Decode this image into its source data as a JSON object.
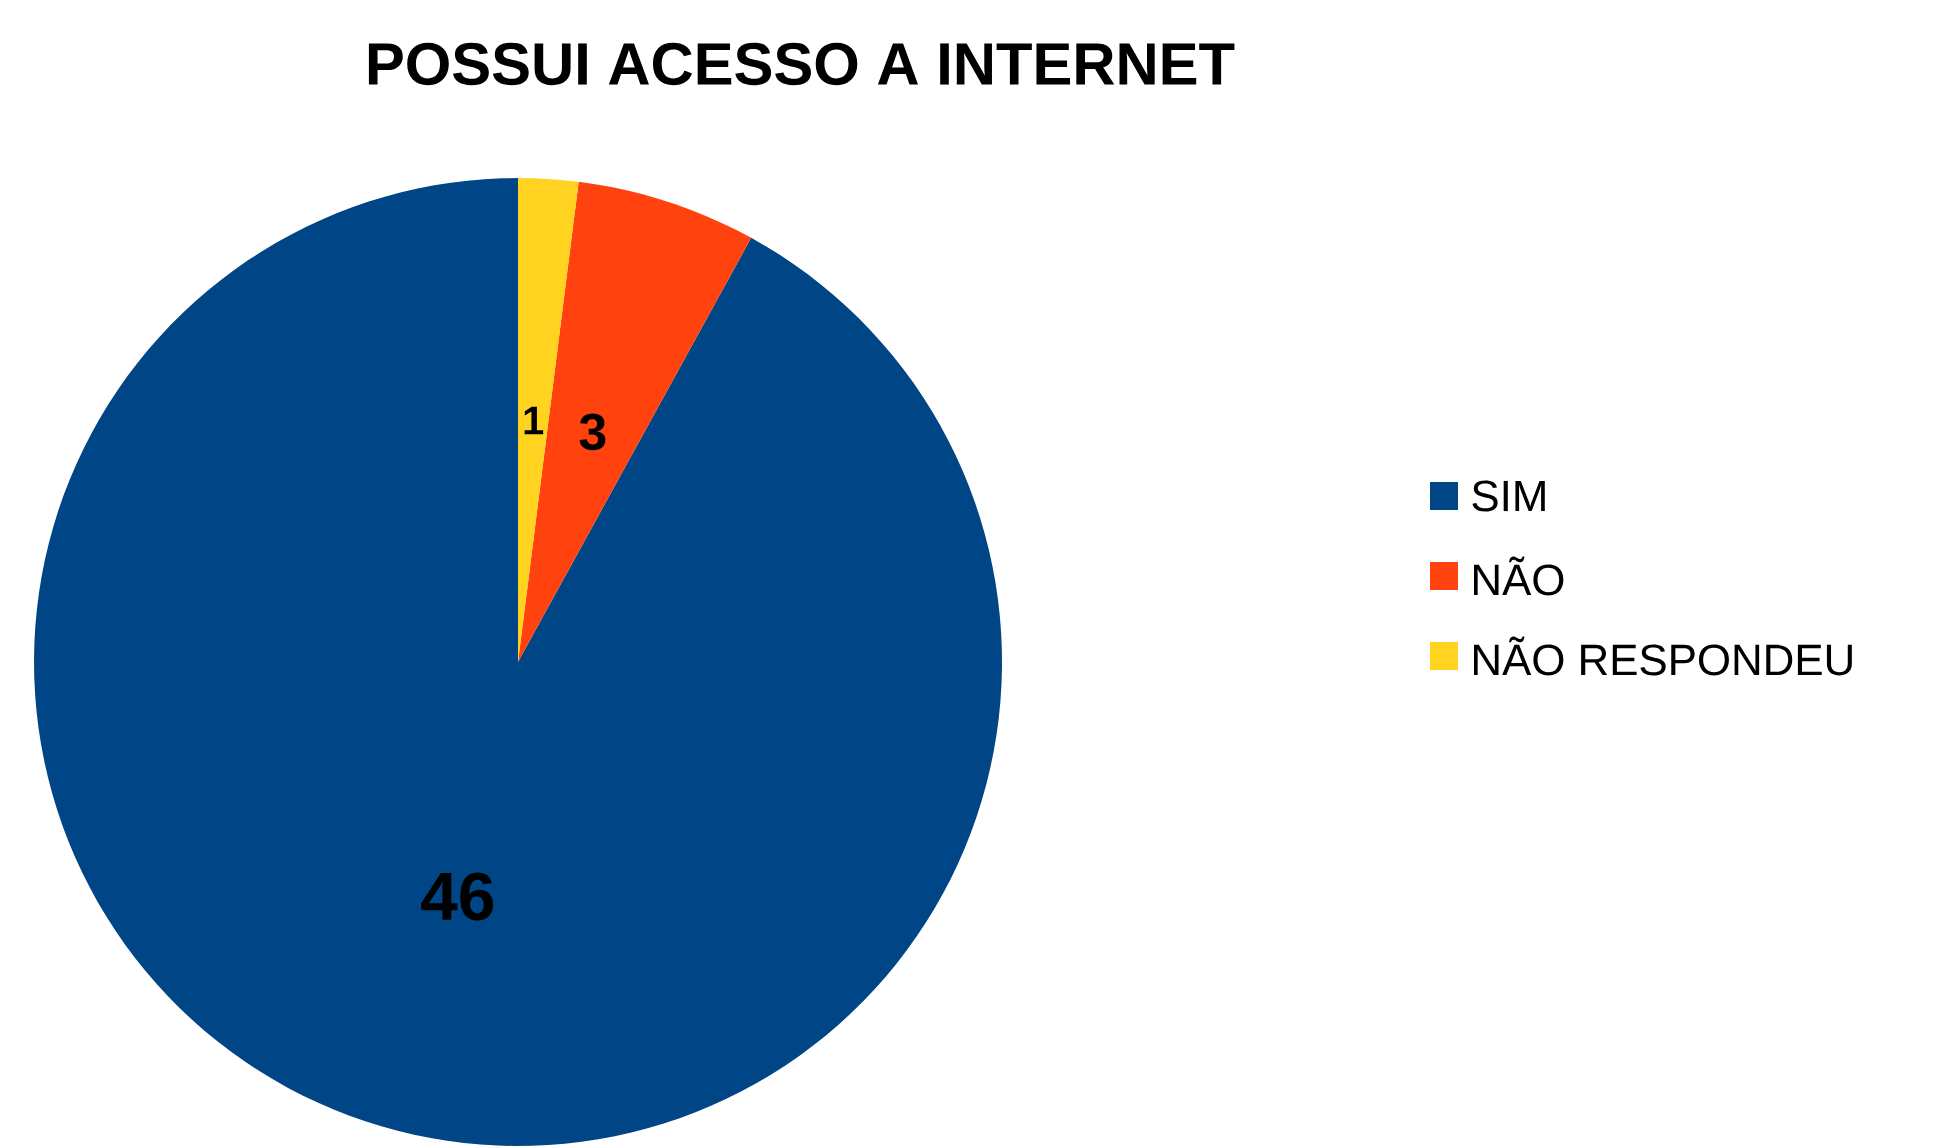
{
  "chart_data": {
    "type": "pie",
    "title": "POSSUI ACESSO A INTERNET",
    "categories": [
      "SIM",
      "NÃO",
      "NÃO RESPONDEU"
    ],
    "values": [
      46,
      3,
      1
    ],
    "colors": [
      "#004586",
      "#ff420e",
      "#ffd320"
    ],
    "data_labels": true,
    "legend": "right"
  }
}
